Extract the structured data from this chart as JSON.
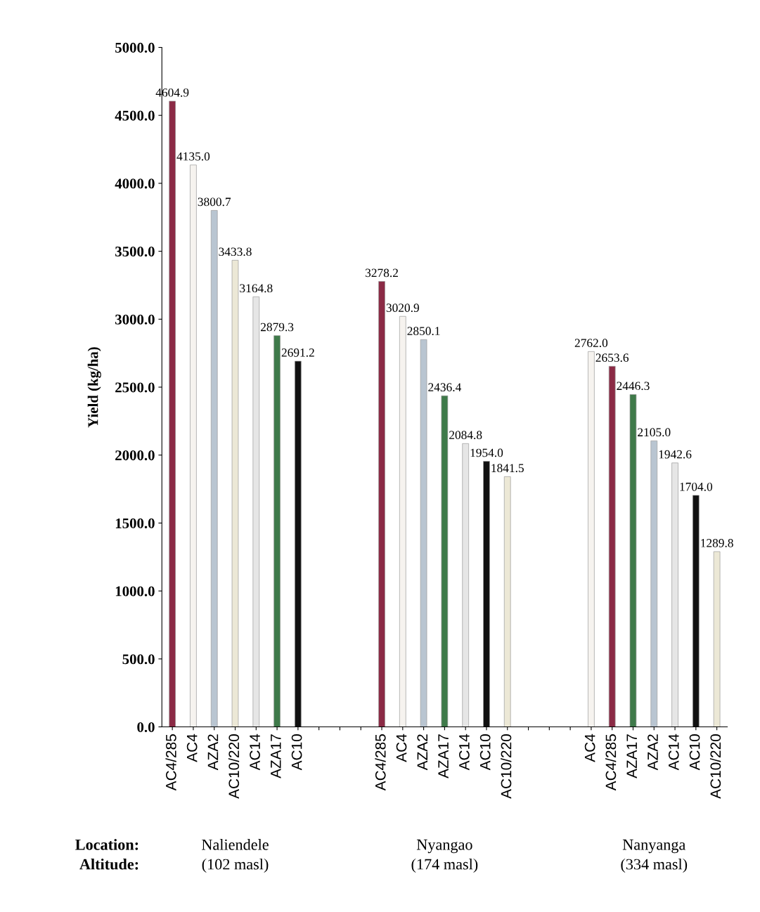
{
  "chart_data": {
    "type": "bar",
    "ylabel": "Yield (kg/ha)",
    "categories": [
      "AC4/285",
      "AC4",
      "AZA2",
      "AC10/220",
      "AC14",
      "AZA17",
      "AC10",
      null,
      null,
      null,
      "AC4/285",
      "AC4",
      "AZA2",
      "AZA17",
      "AC14",
      "AC10",
      "AC10/220",
      null,
      null,
      null,
      "AC4",
      "AC4/285",
      "AZA17",
      "AZA2",
      "AC14",
      "AC10",
      "AC10/220"
    ],
    "values": [
      4604.9,
      4135.0,
      3800.7,
      3433.8,
      3164.8,
      2879.3,
      2691.2,
      null,
      null,
      null,
      3278.2,
      3020.9,
      2850.1,
      2436.4,
      2084.8,
      1954.0,
      1841.5,
      null,
      null,
      null,
      2762.0,
      2653.6,
      2446.3,
      2105.0,
      1942.6,
      1704.0,
      1289.8
    ],
    "colors": [
      "#8b2a45",
      "#f6f3ef",
      "#b9c5d1",
      "#ece8d6",
      "#e6e6e6",
      "#3f7a4a",
      "#111111",
      null,
      null,
      null,
      "#8b2a45",
      "#f6f3ef",
      "#b9c5d1",
      "#3f7a4a",
      "#e6e6e6",
      "#111111",
      "#ece8d6",
      null,
      null,
      null,
      "#f6f3ef",
      "#8b2a45",
      "#3f7a4a",
      "#b9c5d1",
      "#e6e6e6",
      "#111111",
      "#ece8d6"
    ],
    "ylim": [
      0,
      5000
    ],
    "yticks": [
      {
        "value": 0,
        "label": "0.0"
      },
      {
        "value": 500,
        "label": "500.0"
      },
      {
        "value": 1000,
        "label": "1000.0"
      },
      {
        "value": 1500,
        "label": "1500.0"
      },
      {
        "value": 2000,
        "label": "2000.0"
      },
      {
        "value": 2500,
        "label": "2500.0"
      },
      {
        "value": 3000,
        "label": "3000.0"
      },
      {
        "value": 3500,
        "label": "3500.0"
      },
      {
        "value": 4000,
        "label": "4000.0"
      },
      {
        "value": 4500,
        "label": "4500.0"
      },
      {
        "value": 5000,
        "label": "5000.0"
      }
    ],
    "value_labels": [
      "4604.9",
      "4135.0",
      "3800.7",
      "3433.8",
      "3164.8",
      "2879.3",
      "2691.2",
      null,
      null,
      null,
      "3278.2",
      "3020.9",
      "2850.1",
      "2436.4",
      "2084.8",
      "1954.0",
      "1841.5",
      null,
      null,
      null,
      "2762.0",
      "2653.6",
      "2446.3",
      "2105.0",
      "1942.6",
      "1704.0",
      "1289.8"
    ],
    "grid": false,
    "legend": false,
    "annotations": [
      "Location:\nAltitude:",
      "Naliendele\n(102 masl)",
      "Nyangao\n(174 masl)",
      "Nanyanga\n(334 masl)"
    ]
  }
}
